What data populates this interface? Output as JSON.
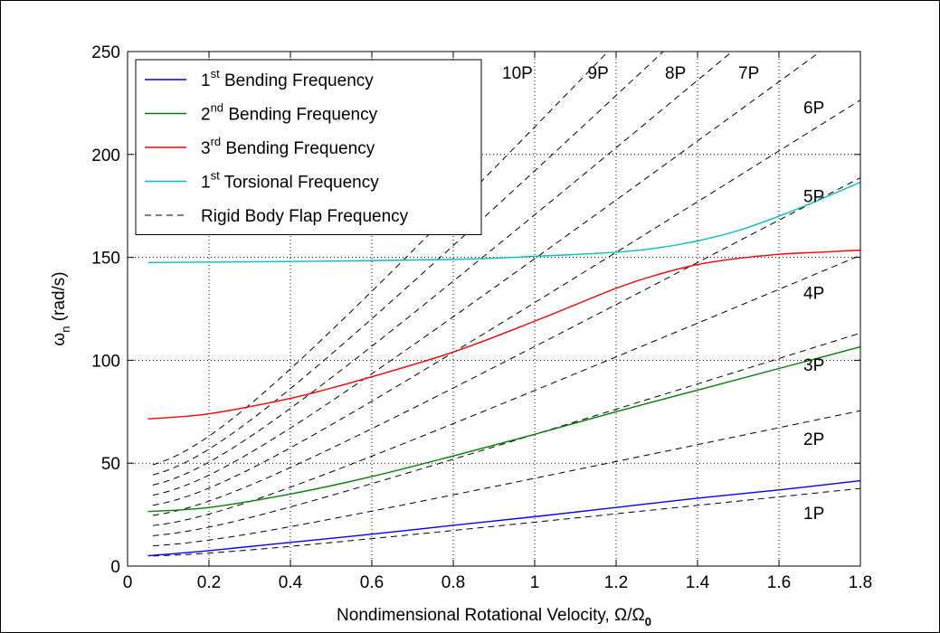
{
  "chart_data": {
    "type": "line",
    "xlabel": "Nondimensional Rotational Velocity, Ω/Ω",
    "xlabel_sub": "0",
    "ylabel": "ω",
    "ylabel_sub": "n",
    "ylabel_unit": " (rad/s)",
    "xlim": [
      0,
      1.8
    ],
    "ylim": [
      0,
      250
    ],
    "x_ticks": [
      "0",
      "0.2",
      "0.4",
      "0.6",
      "0.8",
      "1",
      "1.2",
      "1.4",
      "1.6",
      "1.8"
    ],
    "y_ticks": [
      "0",
      "50",
      "100",
      "150",
      "200",
      "250"
    ],
    "grid": true,
    "legend_position": "top-left",
    "legend": [
      {
        "pre": "1",
        "sup": "st",
        "post": " Bending Frequency",
        "color": "#0000ff",
        "style": "solid"
      },
      {
        "pre": "2",
        "sup": "nd",
        "post": " Bending Frequency",
        "color": "#008000",
        "style": "solid"
      },
      {
        "pre": "3",
        "sup": "rd",
        "post": " Bending Frequency",
        "color": "#ff0000",
        "style": "solid"
      },
      {
        "pre": "1",
        "sup": "st",
        "post": " Torsional Frequency",
        "color": "#00bfbf",
        "style": "solid"
      },
      {
        "pre": "",
        "sup": "",
        "post": "Rigid Body Flap Frequency",
        "color": "#000000",
        "style": "dashed"
      }
    ],
    "series": [
      {
        "color": "#0000ff",
        "x": [
          0.05,
          0.2,
          0.4,
          0.6,
          0.8,
          1.0,
          1.2,
          1.4,
          1.6,
          1.8
        ],
        "y": [
          5,
          7.5,
          11.5,
          15.5,
          19.8,
          24,
          28.5,
          33,
          37,
          41.5
        ]
      },
      {
        "color": "#008000",
        "x": [
          0.05,
          0.2,
          0.4,
          0.6,
          0.8,
          1.0,
          1.2,
          1.4,
          1.6,
          1.8
        ],
        "y": [
          26.5,
          28.5,
          35,
          43.5,
          53.5,
          64,
          75,
          85.5,
          96,
          106.5
        ]
      },
      {
        "color": "#ff0000",
        "x": [
          0.05,
          0.2,
          0.4,
          0.5,
          0.6,
          0.8,
          1.0,
          1.2,
          1.3,
          1.4,
          1.5,
          1.6,
          1.7,
          1.8
        ],
        "y": [
          71.5,
          74,
          81.5,
          86.5,
          92,
          104,
          119,
          135,
          141.5,
          146.5,
          149.5,
          151.5,
          152.5,
          153.5
        ]
      },
      {
        "color": "#00bfbf",
        "x": [
          0.05,
          0.4,
          0.8,
          1.0,
          1.2,
          1.3,
          1.4,
          1.5,
          1.6,
          1.7,
          1.8
        ],
        "y": [
          147.5,
          148,
          149,
          150.5,
          152.5,
          154.5,
          158,
          163,
          170,
          178,
          186.5
        ]
      }
    ],
    "rigid_body_flap": {
      "color": "#000000",
      "style": "dashed",
      "x_start": 0.062,
      "harmonics": [
        1,
        2,
        3,
        4,
        5,
        6,
        7,
        8,
        9,
        10
      ],
      "stiffness_rad_s": 4.75,
      "omega0_rad_s": 20.8
    },
    "annotations": [
      {
        "text": "1P",
        "x": 1.66,
        "y": 26
      },
      {
        "text": "2P",
        "x": 1.66,
        "y": 62
      },
      {
        "text": "3P",
        "x": 1.66,
        "y": 98
      },
      {
        "text": "4P",
        "x": 1.66,
        "y": 133
      },
      {
        "text": "5P",
        "x": 1.66,
        "y": 180
      },
      {
        "text": "6P",
        "x": 1.66,
        "y": 223
      },
      {
        "text": "7P",
        "x": 1.5,
        "y": 240
      },
      {
        "text": "8P",
        "x": 1.32,
        "y": 240
      },
      {
        "text": "9P",
        "x": 1.13,
        "y": 240
      },
      {
        "text": "10P",
        "x": 0.92,
        "y": 240
      }
    ]
  }
}
